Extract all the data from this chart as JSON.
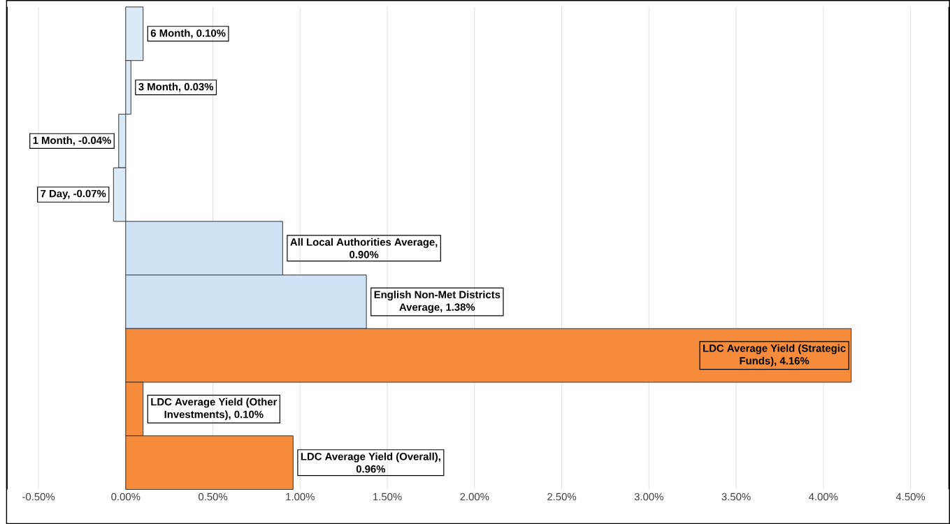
{
  "chart_data": {
    "type": "bar",
    "orientation": "horizontal",
    "grid": "x",
    "categories": [
      null,
      null,
      null,
      null,
      null,
      null,
      null,
      null,
      null
    ],
    "values": [
      0.1,
      0.03,
      -0.04,
      -0.07,
      0.9,
      1.38,
      4.16,
      0.1,
      0.96
    ],
    "value_labels": [
      "6 Month, 0.10%",
      "3 Month, 0.03%",
      "1 Month, -0.04%",
      "7 Day, -0.07%",
      "All Local Authorities Average, 0.90%",
      "English Non-Met Districts Average, 1.38%",
      "LDC Average Yield (Strategic Funds), 4.16%",
      "LDC Average Yield (Other Investments), 0.10%",
      "LDC Average Yield (Overall), 0.96%"
    ],
    "colors": [
      "#dbeaf7",
      "#dbeaf7",
      "#dbeaf7",
      "#dbeaf7",
      "#cfe2f5",
      "#cfe2f5",
      "#f68b3c",
      "#f68b3c",
      "#f68b3c"
    ],
    "xlim": [
      -0.68,
      4.72
    ],
    "xticks": [
      {
        "value": -0.5,
        "label": "-0.50%"
      },
      {
        "value": 0,
        "label": "0.00%"
      },
      {
        "value": 0.5,
        "label": "0.50%"
      },
      {
        "value": 1,
        "label": "1.00%"
      },
      {
        "value": 1.5,
        "label": "1.50%"
      },
      {
        "value": 2,
        "label": "2.00%"
      },
      {
        "value": 2.5,
        "label": "2.50%"
      },
      {
        "value": 3,
        "label": "3.00%"
      },
      {
        "value": 3.5,
        "label": "3.50%"
      },
      {
        "value": 4,
        "label": "4.00%"
      },
      {
        "value": 4.5,
        "label": "4.50%"
      }
    ]
  }
}
